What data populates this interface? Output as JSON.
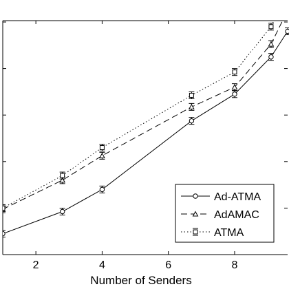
{
  "chart_data": {
    "type": "line",
    "xlabel": "Number of Senders",
    "ylabel": "",
    "xlim": [
      1,
      9.6
    ],
    "ylim": [
      0,
      1
    ],
    "x_ticks": [
      2,
      4,
      6,
      8
    ],
    "x_tick_labels": [
      "2",
      "4",
      "6",
      "8"
    ],
    "y_ticks": [
      0.2,
      0.4,
      0.6,
      0.8,
      1.0
    ],
    "y_tick_labels": [
      "",
      "",
      "",
      "",
      ""
    ],
    "grid": false,
    "legend_position": "bottom-right",
    "series": [
      {
        "name": "Ad-ATMA",
        "style": "solid",
        "marker": "circle",
        "color": "#000000",
        "x": [
          1,
          2.8,
          4,
          6.7,
          8,
          9.1,
          9.6
        ],
        "y": [
          0.09,
          0.185,
          0.28,
          0.575,
          0.69,
          0.85,
          0.96
        ]
      },
      {
        "name": "AdAMAC",
        "style": "dashed",
        "marker": "triangle",
        "color": "#000000",
        "x": [
          1,
          2.8,
          4,
          6.7,
          8,
          9.1,
          9.6
        ],
        "y": [
          0.195,
          0.32,
          0.425,
          0.635,
          0.72,
          0.905,
          1.05
        ]
      },
      {
        "name": "ATMA",
        "style": "dotted",
        "marker": "square",
        "color": "#000000",
        "x": [
          1,
          2.8,
          4,
          6.7,
          8,
          9.1,
          9.6
        ],
        "y": [
          0.2,
          0.34,
          0.46,
          0.685,
          0.785,
          0.98,
          1.13
        ]
      }
    ]
  }
}
